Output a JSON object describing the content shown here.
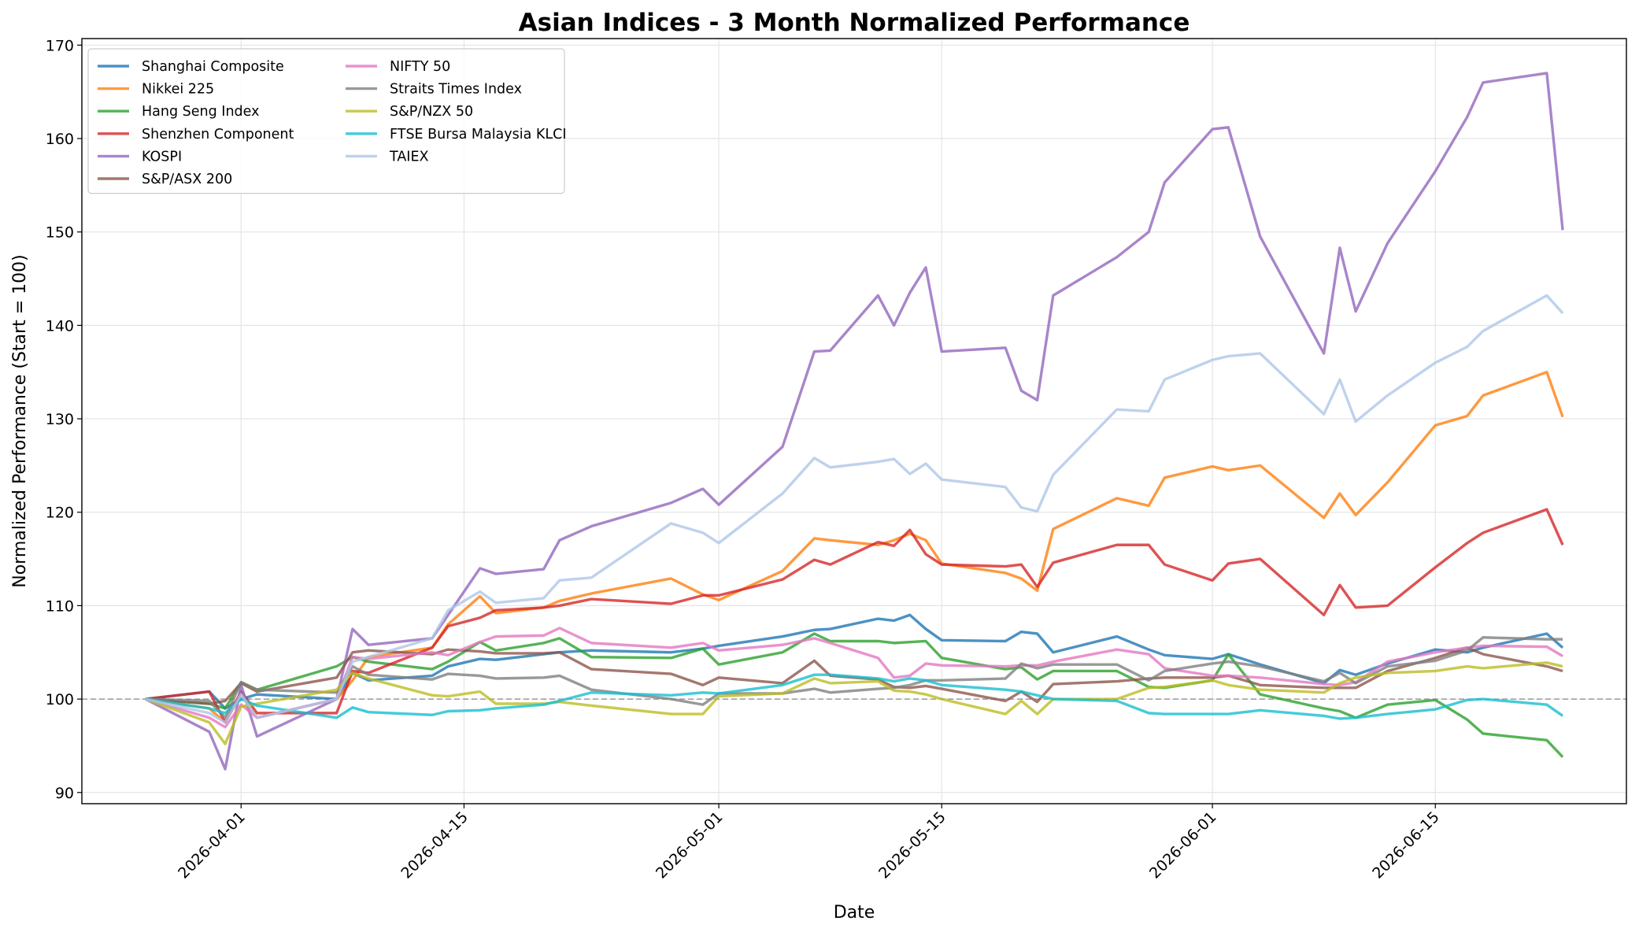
{
  "chart_data": {
    "type": "line",
    "title": "Asian Indices - 3 Month Normalized Performance",
    "x_label": "Date",
    "y_label": "Normalized Performance (Start = 100)",
    "x": [
      "2026-03-26",
      "2026-03-30",
      "2026-03-31",
      "2026-04-01",
      "2026-04-02",
      "2026-04-07",
      "2026-04-08",
      "2026-04-09",
      "2026-04-13",
      "2026-04-14",
      "2026-04-16",
      "2026-04-17",
      "2026-04-20",
      "2026-04-21",
      "2026-04-23",
      "2026-04-28",
      "2026-04-30",
      "2026-05-01",
      "2026-05-05",
      "2026-05-07",
      "2026-05-08",
      "2026-05-11",
      "2026-05-12",
      "2026-05-13",
      "2026-05-14",
      "2026-05-15",
      "2026-05-19",
      "2026-05-20",
      "2026-05-21",
      "2026-05-22",
      "2026-05-26",
      "2026-05-28",
      "2026-05-29",
      "2026-06-01",
      "2026-06-02",
      "2026-06-04",
      "2026-06-08",
      "2026-06-09",
      "2026-06-10",
      "2026-06-12",
      "2026-06-15",
      "2026-06-17",
      "2026-06-18",
      "2026-06-22",
      "2026-06-23"
    ],
    "series": [
      {
        "name": "Shanghai Composite",
        "color": "#1f77b4",
        "values": [
          100,
          100.8,
          99,
          100,
          100.5,
          100,
          102.8,
          102,
          102.5,
          103.5,
          104.3,
          104.2,
          104.8,
          105,
          105.2,
          105,
          105.4,
          105.7,
          106.7,
          107.4,
          107.5,
          108.6,
          108.4,
          109,
          107.5,
          106.3,
          106.2,
          107.2,
          107,
          105,
          106.7,
          105.3,
          104.7,
          104.3,
          104.8,
          103.7,
          101.7,
          103.1,
          102.6,
          103.8,
          105.3,
          105,
          105.5,
          107,
          105.5
        ]
      },
      {
        "name": "Nikkei 225",
        "color": "#ff7f0e",
        "values": [
          100,
          99,
          97.5,
          100.5,
          98,
          100,
          102,
          104.5,
          105.5,
          108,
          111,
          109.2,
          109.8,
          110.5,
          111.3,
          112.9,
          111.2,
          110.6,
          113.7,
          117.2,
          117,
          116.5,
          117,
          117.7,
          117,
          114.5,
          113.5,
          112.9,
          111.6,
          118.2,
          121.5,
          120.7,
          123.7,
          124.9,
          124.5,
          125,
          119.4,
          122,
          119.7,
          123.2,
          129.3,
          130.3,
          132.5,
          135,
          130.2
        ]
      },
      {
        "name": "Hang Seng Index",
        "color": "#2ca02c",
        "values": [
          100,
          99.5,
          99,
          101.8,
          101,
          103.5,
          104.5,
          104,
          103.2,
          104,
          106.1,
          105.2,
          106,
          106.5,
          104.5,
          104.4,
          105.4,
          103.7,
          105,
          107,
          106.2,
          106.2,
          106,
          106.1,
          106.2,
          104.4,
          103.2,
          103.4,
          102.1,
          103,
          103,
          101.3,
          101.2,
          102,
          104.8,
          100.5,
          99,
          98.7,
          98,
          99.4,
          99.9,
          97.8,
          96.3,
          95.6,
          93.8
        ]
      },
      {
        "name": "Shenzhen Component",
        "color": "#d62728",
        "values": [
          100,
          100.8,
          97.5,
          100.8,
          98.5,
          98.5,
          103,
          102.8,
          105.5,
          107.8,
          108.7,
          109.5,
          109.8,
          110,
          110.7,
          110.2,
          111.1,
          111.1,
          112.8,
          114.9,
          114.4,
          116.8,
          116.4,
          118.1,
          115.5,
          114.4,
          114.2,
          114.4,
          112,
          114.6,
          116.5,
          116.5,
          114.4,
          112.7,
          114.5,
          115,
          109,
          112.2,
          109.8,
          110,
          114.1,
          116.7,
          117.8,
          120.3,
          116.5
        ]
      },
      {
        "name": "KOSPI",
        "color": "#9467bd",
        "values": [
          100,
          96.5,
          92.5,
          101.5,
          96,
          100,
          107.5,
          105.8,
          106.5,
          109,
          114,
          113.4,
          113.9,
          117,
          118.5,
          121,
          122.5,
          120.8,
          127,
          137.2,
          137.3,
          143.2,
          140,
          143.5,
          146.2,
          137.2,
          137.6,
          133,
          132,
          143.2,
          147.3,
          150,
          155.3,
          161,
          161.2,
          149.5,
          137,
          148.3,
          141.5,
          148.8,
          156.5,
          162.3,
          166,
          167,
          150.2
        ]
      },
      {
        "name": "S&P/ASX 200",
        "color": "#8c564b",
        "values": [
          100,
          99.5,
          99.8,
          101.7,
          100.8,
          102.3,
          105,
          105.2,
          104.8,
          105.3,
          105.1,
          104.9,
          104.9,
          105,
          103.2,
          102.7,
          101.5,
          102.3,
          101.7,
          104.1,
          102.5,
          102.1,
          101.3,
          101.2,
          101.4,
          101.1,
          99.8,
          100.8,
          99.7,
          101.6,
          101.9,
          102.2,
          102.3,
          102.3,
          102.5,
          101.5,
          101.2,
          101.2,
          101.2,
          103,
          104.4,
          105.5,
          104.8,
          103.5,
          103
        ]
      },
      {
        "name": "NIFTY 50",
        "color": "#e377c2",
        "values": [
          100,
          98,
          97,
          99.4,
          98,
          100,
          104.5,
          104.3,
          105,
          104.7,
          106.1,
          106.7,
          106.8,
          107.6,
          106,
          105.5,
          106,
          105.2,
          105.8,
          106.5,
          106,
          104.4,
          102.3,
          102.5,
          103.8,
          103.6,
          103.5,
          103.6,
          103.6,
          104,
          105.3,
          104.8,
          103.3,
          102.5,
          102.5,
          102.3,
          101.6,
          101.5,
          101.8,
          104,
          105,
          105.5,
          105.7,
          105.6,
          104.6
        ]
      },
      {
        "name": "Straits Times Index",
        "color": "#7f7f7f",
        "values": [
          100,
          99.8,
          98,
          101.8,
          101,
          100.7,
          103.5,
          102.6,
          102.1,
          102.7,
          102.5,
          102.2,
          102.3,
          102.5,
          101,
          100,
          99.4,
          100.6,
          100.6,
          101.1,
          100.7,
          101.1,
          101.2,
          101.5,
          102,
          102,
          102.2,
          103.8,
          103.3,
          103.7,
          103.7,
          102,
          103,
          103.8,
          104,
          103.5,
          101.9,
          102.8,
          101.7,
          103.5,
          104.1,
          105.2,
          106.6,
          106.4,
          106.4
        ]
      },
      {
        "name": "S&P/NZX 50",
        "color": "#bcbd22",
        "values": [
          100,
          97.5,
          95.2,
          99.2,
          99.5,
          101,
          102.8,
          102.2,
          100.4,
          100.3,
          100.8,
          99.5,
          99.5,
          99.7,
          99.3,
          98.4,
          98.4,
          100.3,
          100.6,
          102.2,
          101.7,
          101.9,
          100.9,
          100.8,
          100.5,
          100,
          98.4,
          99.8,
          98.4,
          100,
          100,
          101.2,
          101.3,
          102,
          101.5,
          101,
          100.7,
          101.7,
          102.3,
          102.8,
          103,
          103.5,
          103.3,
          103.9,
          103.5
        ]
      },
      {
        "name": "FTSE Bursa Malaysia KLCI",
        "color": "#17becf",
        "values": [
          100,
          99,
          98.5,
          100,
          99.3,
          98,
          99.1,
          98.6,
          98.3,
          98.7,
          98.8,
          99,
          99.4,
          99.8,
          100.7,
          100.4,
          100.7,
          100.6,
          101.5,
          102.6,
          102.6,
          102.2,
          101.9,
          102.2,
          102,
          101.5,
          101,
          100.8,
          100.4,
          100,
          99.8,
          98.5,
          98.4,
          98.4,
          98.4,
          98.8,
          98.2,
          97.9,
          98,
          98.4,
          98.9,
          99.9,
          100,
          99.4,
          98.2
        ]
      },
      {
        "name": "TAIEX",
        "color": "#aec7e8",
        "values": [
          100,
          98.5,
          97.5,
          100.5,
          98,
          100,
          104,
          104.5,
          106.5,
          109.5,
          111.5,
          110.3,
          110.8,
          112.7,
          113,
          118.8,
          117.8,
          116.7,
          122,
          125.8,
          124.8,
          125.4,
          125.7,
          124.1,
          125.2,
          123.5,
          122.7,
          120.5,
          120.1,
          124,
          131,
          130.8,
          134.2,
          136.3,
          136.7,
          137,
          130.5,
          134.2,
          129.7,
          132.5,
          136,
          137.7,
          139.4,
          143.2,
          141.3
        ]
      }
    ],
    "xlim": [
      "2026-03-22",
      "2026-06-27"
    ],
    "xticks": [
      "2026-04-01",
      "2026-04-15",
      "2026-05-01",
      "2026-05-15",
      "2026-06-01",
      "2026-06-15"
    ],
    "ylim": [
      88.8,
      170.7
    ],
    "yticks": [
      90,
      100,
      110,
      120,
      130,
      140,
      150,
      160,
      170
    ],
    "reference_line": 100,
    "grid": true,
    "legend_position": "upper-left",
    "legend_columns": 2
  }
}
